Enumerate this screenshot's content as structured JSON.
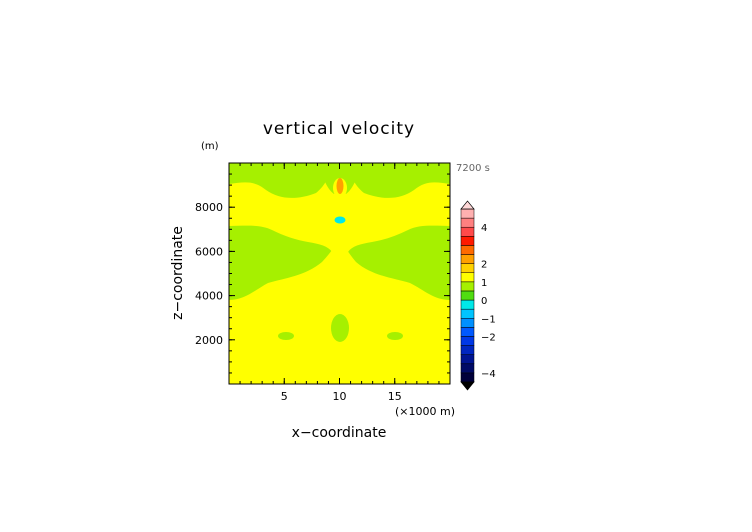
{
  "chart_data": {
    "type": "heatmap",
    "title": "vertical velocity",
    "xlabel": "x−coordinate",
    "ylabel": "z−coordinate",
    "y_unit": "(m)",
    "x_unit": "(×1000 m)",
    "time_label": "7200 s",
    "xlim": [
      0,
      20
    ],
    "ylim": [
      0,
      10000
    ],
    "x_ticks": [
      5,
      10,
      15
    ],
    "y_ticks": [
      2000,
      4000,
      6000,
      8000
    ],
    "colorbar": {
      "levels": [
        -4.5,
        -4,
        -3.5,
        -3,
        -2.5,
        -2,
        -1.5,
        -1,
        -0.5,
        0,
        0.5,
        1,
        1.5,
        2,
        2.5,
        3,
        3.5,
        4,
        4.5,
        5
      ],
      "colors": [
        "#00003a",
        "#000a66",
        "#001491",
        "#0026c0",
        "#0038e6",
        "#0059ff",
        "#0090ff",
        "#00c4ff",
        "#00e8e8",
        "#50dd10",
        "#a6f000",
        "#ffff00",
        "#ffd200",
        "#ffa000",
        "#ff6a00",
        "#ff1a00",
        "#ff4a4a",
        "#ff8080",
        "#ffb0b0"
      ],
      "tick_labels": [
        "4",
        "2",
        "1",
        "0",
        "−1",
        "−2",
        "−4"
      ],
      "tick_values": [
        4,
        2,
        1,
        0,
        -1,
        -2,
        -4
      ]
    },
    "field_description_colors": {
      "positive_band": "#ffff00",
      "near_zero": "#a6f000",
      "updraft_core": "#ffa000",
      "downdraft_core": "#00e8e8"
    }
  }
}
